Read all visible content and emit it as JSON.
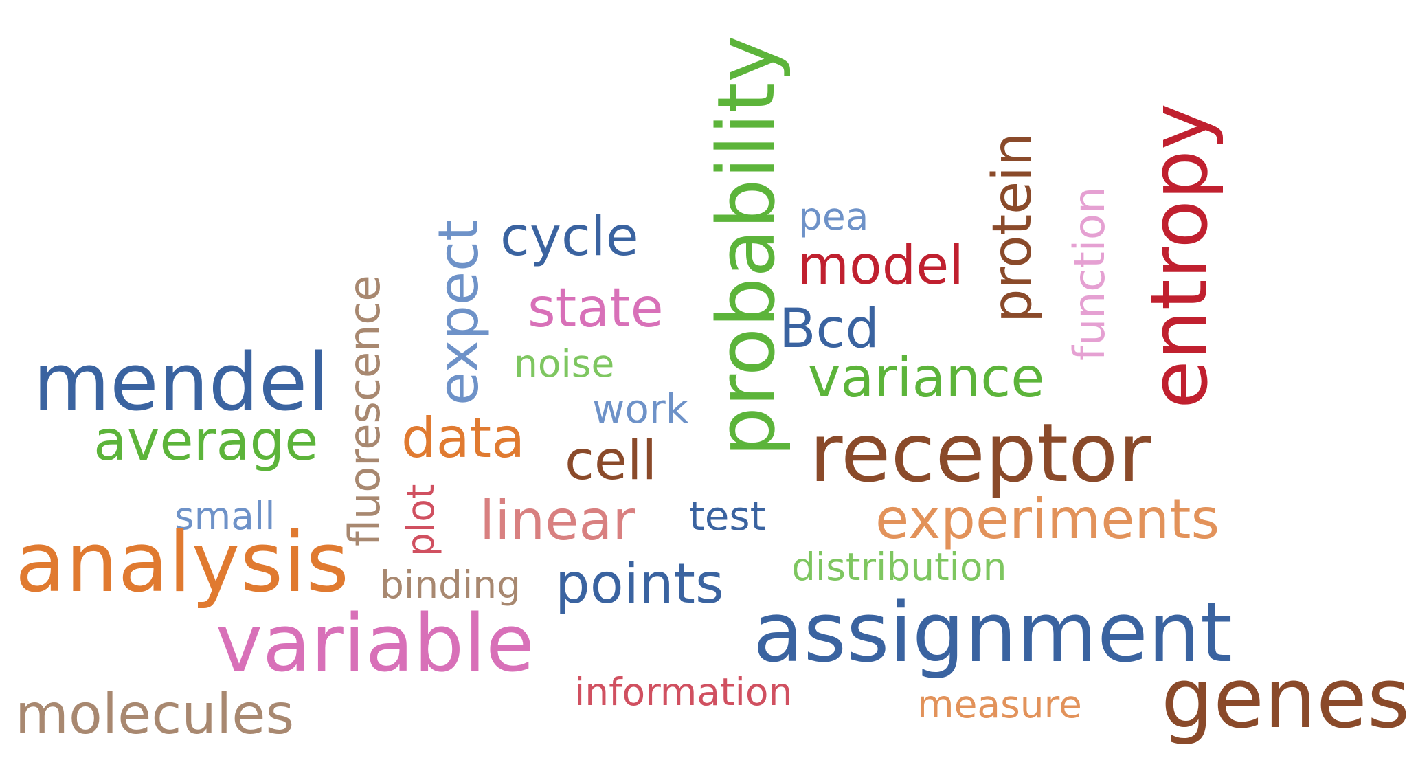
{
  "colors": {
    "blue": "#3a63a0",
    "light_blue": "#6e92c8",
    "green": "#5cb43a",
    "light_green": "#7ec660",
    "orange": "#e07a30",
    "light_orange": "#e2925a",
    "pink": "#d870b8",
    "light_pink": "#e5a0d2",
    "brown": "#8a4a2a",
    "tan": "#a88870",
    "red": "#c0202f",
    "rose": "#d05060",
    "dusty_rose": "#d88080"
  },
  "words": {
    "mendel": "mendel",
    "average": "average",
    "small": "small",
    "analysis": "analysis",
    "variable": "variable",
    "molecules": "molecules",
    "fluorescence": "fluorescence",
    "plot": "plot",
    "expect": "expect",
    "data": "data",
    "binding": "binding",
    "cycle": "cycle",
    "state": "state",
    "noise": "noise",
    "work": "work",
    "cell": "cell",
    "linear": "linear",
    "test": "test",
    "points": "points",
    "information": "information",
    "probability": "probability",
    "pea": "pea",
    "model": "model",
    "bcd": "Bcd",
    "variance": "variance",
    "receptor": "receptor",
    "protein": "protein",
    "function": "function",
    "entropy": "entropy",
    "experiments": "experiments",
    "distribution": "distribution",
    "assignment": "assignment",
    "measure": "measure",
    "genes": "genes"
  }
}
